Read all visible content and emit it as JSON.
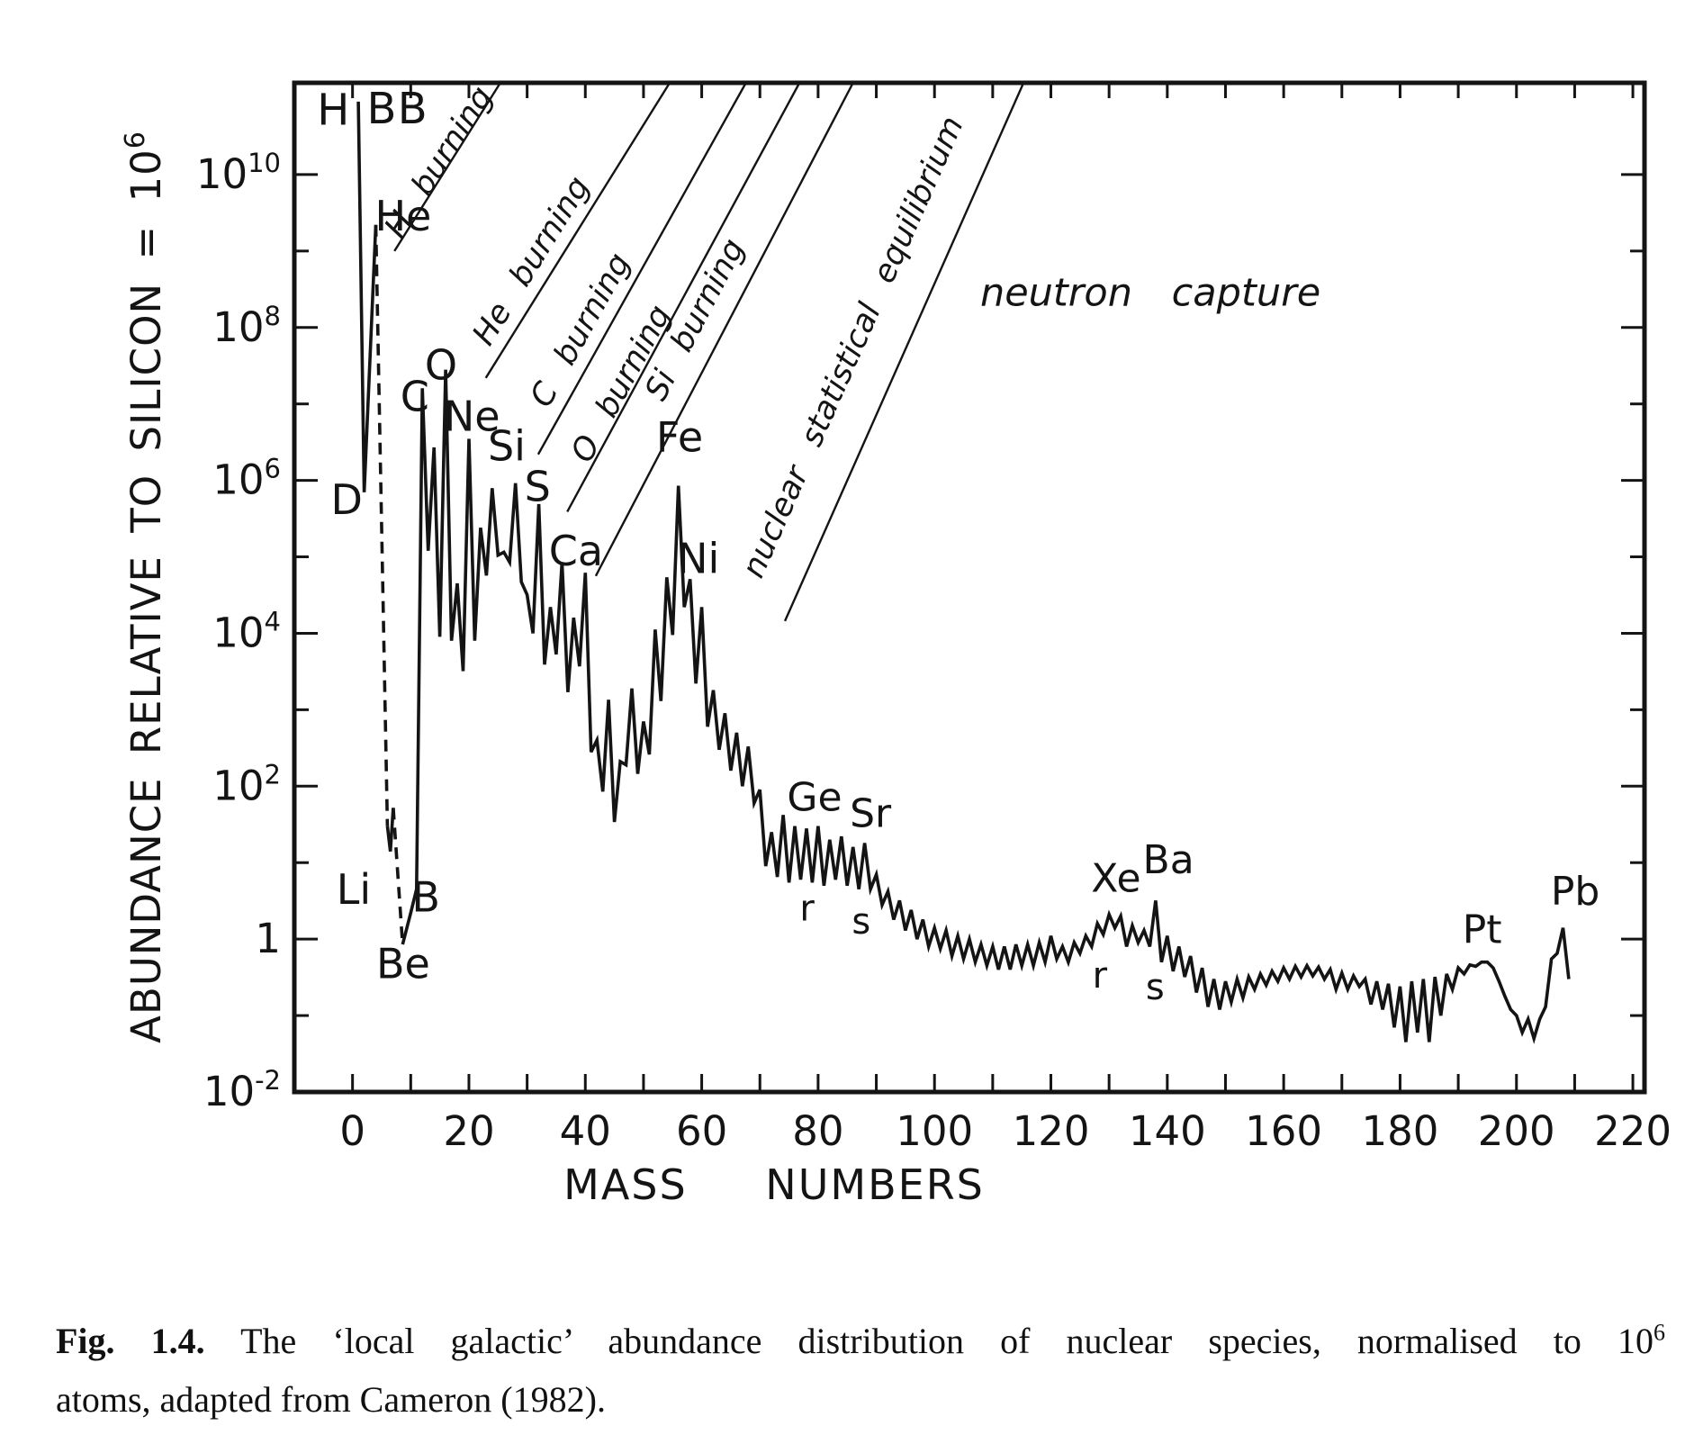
{
  "figure": {
    "caption": {
      "label": "Fig. 1.4.",
      "line1_body": "The ‘local galactic’ abundance distribution of nuclear species, normalised to 10",
      "line1_sup": "6",
      "line2": "atoms, adapted from Cameron (1982)."
    }
  },
  "chart_data": {
    "type": "line",
    "title": "",
    "xlabel": "MASS NUMBERS",
    "ylabel_base": "ABUNDANCE RELATIVE TO SILICON = 10",
    "ylabel_sup": "6",
    "x_range": [
      -10,
      222
    ],
    "y_log_range": [
      -2,
      11.2
    ],
    "grid": false,
    "legend": null,
    "x_tick_step": 10,
    "x_tick_labels": [
      {
        "text": "0",
        "A": 0
      },
      {
        "text": "20",
        "A": 20
      },
      {
        "text": "40",
        "A": 40
      },
      {
        "text": "60",
        "A": 60
      },
      {
        "text": "80",
        "A": 80
      },
      {
        "text": "100",
        "A": 100
      },
      {
        "text": "120",
        "A": 120
      },
      {
        "text": "140",
        "A": 140
      },
      {
        "text": "160",
        "A": 160
      },
      {
        "text": "180",
        "A": 180
      },
      {
        "text": "200",
        "A": 200
      },
      {
        "text": "220",
        "A": 220
      }
    ],
    "y_tick_labels": [
      {
        "base": "10",
        "sup": "10",
        "lv": 10
      },
      {
        "base": "10",
        "sup": "8",
        "lv": 8
      },
      {
        "base": "10",
        "sup": "6",
        "lv": 6
      },
      {
        "base": "10",
        "sup": "4",
        "lv": 4
      },
      {
        "base": "10",
        "sup": "2",
        "lv": 2
      },
      {
        "base": "1",
        "sup": "",
        "lv": 0
      },
      {
        "base": "10",
        "sup": "-2",
        "lv": -2
      }
    ],
    "solid_segments": [
      [
        [
          1,
          90000000000
        ],
        [
          2,
          700000
        ],
        [
          4,
          2200000000
        ]
      ],
      [
        [
          6,
          30
        ],
        [
          6.5,
          14
        ],
        [
          7,
          52
        ]
      ],
      [
        [
          8.6,
          0.85
        ],
        [
          10,
          2.2
        ],
        [
          11,
          4.5
        ],
        [
          12,
          16000000
        ],
        [
          13,
          120000
        ],
        [
          14,
          2700000
        ],
        [
          15,
          9000
        ],
        [
          16,
          28000000
        ],
        [
          17,
          8000
        ],
        [
          18,
          45000
        ],
        [
          19,
          3200
        ],
        [
          20,
          3500000
        ],
        [
          21,
          8000
        ],
        [
          22,
          240000
        ],
        [
          23,
          57000
        ],
        [
          24,
          790000
        ],
        [
          25,
          105000
        ],
        [
          26,
          115000
        ],
        [
          27,
          85000
        ],
        [
          28,
          920000
        ],
        [
          29,
          47000
        ],
        [
          30,
          32000
        ],
        [
          31,
          10000
        ],
        [
          32,
          490000
        ],
        [
          33,
          3900
        ],
        [
          34,
          22000
        ],
        [
          35,
          5300
        ],
        [
          36,
          85000
        ],
        [
          37,
          1700
        ],
        [
          38,
          16000
        ],
        [
          39,
          3700
        ],
        [
          40,
          62000
        ],
        [
          41,
          280
        ],
        [
          42,
          400
        ],
        [
          43,
          85
        ],
        [
          44,
          1350
        ],
        [
          45,
          34
        ],
        [
          46,
          210
        ],
        [
          47,
          190
        ],
        [
          48,
          1900
        ],
        [
          49,
          145
        ],
        [
          50,
          700
        ],
        [
          51,
          260
        ],
        [
          52,
          11200
        ],
        [
          53,
          1300
        ],
        [
          54,
          54000
        ],
        [
          55,
          9500
        ],
        [
          56,
          850000
        ],
        [
          57,
          22000
        ],
        [
          58,
          51000
        ],
        [
          59,
          2200
        ],
        [
          60,
          22000
        ],
        [
          61,
          600
        ],
        [
          62,
          1800
        ],
        [
          63,
          300
        ],
        [
          64,
          900
        ],
        [
          65,
          160
        ],
        [
          66,
          500
        ],
        [
          67,
          100
        ],
        [
          68,
          330
        ],
        [
          69,
          60
        ],
        [
          70,
          90
        ],
        [
          71,
          9
        ],
        [
          72,
          25
        ],
        [
          73,
          6.5
        ],
        [
          74,
          42
        ],
        [
          75,
          5.5
        ],
        [
          76,
          30
        ],
        [
          77,
          6
        ],
        [
          78,
          28
        ],
        [
          79,
          5.5
        ],
        [
          80,
          30
        ],
        [
          81,
          5
        ],
        [
          82,
          20
        ],
        [
          83,
          6
        ],
        [
          84,
          22
        ],
        [
          85,
          5
        ],
        [
          86,
          16
        ],
        [
          87,
          4.5
        ],
        [
          88,
          18
        ],
        [
          89,
          4.5
        ],
        [
          90,
          7
        ],
        [
          91,
          2.8
        ],
        [
          92,
          4.2
        ],
        [
          93,
          1.8
        ],
        [
          94,
          3.2
        ],
        [
          95,
          1.3
        ],
        [
          96,
          2.4
        ],
        [
          97,
          1.0
        ],
        [
          98,
          1.8
        ],
        [
          99,
          0.8
        ],
        [
          100,
          1.4
        ],
        [
          101,
          0.75
        ],
        [
          102,
          1.3
        ],
        [
          103,
          0.6
        ],
        [
          104,
          1.1
        ],
        [
          105,
          0.55
        ],
        [
          106,
          1.0
        ],
        [
          107,
          0.5
        ],
        [
          108,
          0.85
        ],
        [
          109,
          0.45
        ],
        [
          110,
          0.8
        ],
        [
          111,
          0.4
        ],
        [
          112,
          0.8
        ],
        [
          113,
          0.4
        ],
        [
          114,
          0.85
        ],
        [
          115,
          0.45
        ],
        [
          116,
          0.85
        ],
        [
          117,
          0.45
        ],
        [
          118,
          0.9
        ],
        [
          119,
          0.5
        ],
        [
          120,
          1.1
        ],
        [
          121,
          0.55
        ],
        [
          122,
          0.8
        ],
        [
          123,
          0.5
        ],
        [
          124,
          0.9
        ],
        [
          125,
          0.65
        ],
        [
          126,
          1.1
        ],
        [
          127,
          0.8
        ],
        [
          128,
          1.6
        ],
        [
          129,
          1.15
        ],
        [
          130,
          2.1
        ],
        [
          131,
          1.4
        ],
        [
          132,
          2.0
        ],
        [
          133,
          0.8
        ],
        [
          134,
          1.5
        ],
        [
          135,
          0.9
        ],
        [
          136,
          1.3
        ],
        [
          137,
          0.8
        ],
        [
          138,
          3.2
        ],
        [
          139,
          0.5
        ],
        [
          140,
          1.1
        ],
        [
          141,
          0.38
        ],
        [
          142,
          0.8
        ],
        [
          143,
          0.32
        ],
        [
          144,
          0.6
        ],
        [
          145,
          0.2
        ],
        [
          146,
          0.42
        ],
        [
          147,
          0.13
        ],
        [
          148,
          0.3
        ],
        [
          149,
          0.12
        ],
        [
          150,
          0.28
        ],
        [
          151,
          0.15
        ],
        [
          152,
          0.3
        ],
        [
          153,
          0.17
        ],
        [
          154,
          0.32
        ],
        [
          155,
          0.22
        ],
        [
          156,
          0.35
        ],
        [
          157,
          0.25
        ],
        [
          158,
          0.38
        ],
        [
          159,
          0.28
        ],
        [
          160,
          0.42
        ],
        [
          161,
          0.3
        ],
        [
          162,
          0.44
        ],
        [
          163,
          0.32
        ],
        [
          164,
          0.45
        ],
        [
          165,
          0.33
        ],
        [
          166,
          0.43
        ],
        [
          167,
          0.3
        ],
        [
          168,
          0.4
        ],
        [
          169,
          0.22
        ],
        [
          170,
          0.36
        ],
        [
          171,
          0.22
        ],
        [
          172,
          0.33
        ],
        [
          173,
          0.24
        ],
        [
          174,
          0.3
        ],
        [
          175,
          0.14
        ],
        [
          176,
          0.28
        ],
        [
          177,
          0.12
        ],
        [
          178,
          0.26
        ],
        [
          179,
          0.07
        ],
        [
          180,
          0.24
        ],
        [
          181,
          0.045
        ],
        [
          182,
          0.28
        ],
        [
          183,
          0.06
        ],
        [
          184,
          0.3
        ],
        [
          185,
          0.045
        ],
        [
          186,
          0.32
        ],
        [
          187,
          0.1
        ],
        [
          188,
          0.35
        ],
        [
          189,
          0.22
        ],
        [
          190,
          0.42
        ],
        [
          191,
          0.35
        ],
        [
          192,
          0.46
        ],
        [
          193,
          0.44
        ],
        [
          194,
          0.5
        ],
        [
          195,
          0.5
        ],
        [
          196,
          0.42
        ],
        [
          197,
          0.28
        ],
        [
          198,
          0.18
        ],
        [
          199,
          0.12
        ],
        [
          200,
          0.1
        ],
        [
          201,
          0.06
        ],
        [
          202,
          0.09
        ],
        [
          203,
          0.05
        ],
        [
          204,
          0.09
        ],
        [
          205,
          0.13
        ],
        [
          206,
          0.55
        ],
        [
          207,
          0.65
        ],
        [
          208,
          1.4
        ],
        [
          209,
          0.3
        ]
      ]
    ],
    "dashed_segments": [
      [
        [
          4,
          2200000000
        ],
        [
          6,
          30
        ]
      ],
      [
        [
          7,
          52
        ],
        [
          8.6,
          0.85
        ]
      ]
    ],
    "element_labels": [
      {
        "text": "H",
        "A": -3.3,
        "lv": 10.85,
        "size": 48
      },
      {
        "text": "B",
        "A": 5.0,
        "lv": 10.87,
        "size": 48
      },
      {
        "text": "B",
        "A": 10.3,
        "lv": 10.87,
        "size": 48
      },
      {
        "text": "He",
        "A": 8.7,
        "lv": 9.46,
        "size": 46
      },
      {
        "text": "D",
        "A": -1.0,
        "lv": 5.75,
        "size": 46
      },
      {
        "text": "Li",
        "A": 0.2,
        "lv": 0.65,
        "size": 46
      },
      {
        "text": "Be",
        "A": 8.7,
        "lv": -0.32,
        "size": 46
      },
      {
        "text": "B",
        "A": 12.6,
        "lv": 0.55,
        "size": 46
      },
      {
        "text": "C",
        "A": 10.7,
        "lv": 7.1,
        "size": 46
      },
      {
        "text": "O",
        "A": 15.2,
        "lv": 7.51,
        "size": 46
      },
      {
        "text": "Ne",
        "A": 20.5,
        "lv": 6.84,
        "size": 46
      },
      {
        "text": "Si",
        "A": 26.5,
        "lv": 6.45,
        "size": 46
      },
      {
        "text": "S",
        "A": 31.8,
        "lv": 5.92,
        "size": 46
      },
      {
        "text": "Ca",
        "A": 38.4,
        "lv": 5.08,
        "size": 46
      },
      {
        "text": "Fe",
        "A": 56.2,
        "lv": 6.57,
        "size": 46
      },
      {
        "text": "Ni",
        "A": 59.4,
        "lv": 4.98,
        "size": 46
      },
      {
        "text": "Ge",
        "A": 79.4,
        "lv": 1.86,
        "size": 44
      },
      {
        "text": "Sr",
        "A": 89.0,
        "lv": 1.65,
        "size": 44
      },
      {
        "text": "r",
        "A": 78.1,
        "lv": 0.41,
        "size": 40
      },
      {
        "text": "s",
        "A": 87.4,
        "lv": 0.24,
        "size": 40
      },
      {
        "text": "Xe",
        "A": 131.2,
        "lv": 0.8,
        "size": 44
      },
      {
        "text": "Ba",
        "A": 140.2,
        "lv": 1.04,
        "size": 44
      },
      {
        "text": "r",
        "A": 128.4,
        "lv": -0.47,
        "size": 40
      },
      {
        "text": "s",
        "A": 137.9,
        "lv": -0.62,
        "size": 40
      },
      {
        "text": "Pt",
        "A": 194.1,
        "lv": 0.13,
        "size": 44
      },
      {
        "text": "Pb",
        "A": 210.1,
        "lv": 0.63,
        "size": 44
      }
    ],
    "process_lines": [
      {
        "label": "H burning",
        "A1": 7.2,
        "lv1": 9.0,
        "A2": 25.4,
        "lv2": 11.2,
        "label_A": 16.3,
        "label_lv": 10.09,
        "angle": -57.6
      },
      {
        "label": "He burning",
        "A1": 22.9,
        "lv1": 7.34,
        "A2": 54.5,
        "lv2": 11.2,
        "label_A": 32.2,
        "label_lv": 8.8,
        "angle": -58.1
      },
      {
        "label": "C burning",
        "A1": 31.9,
        "lv1": 6.34,
        "A2": 67.6,
        "lv2": 11.2,
        "label_A": 40.7,
        "label_lv": 7.9,
        "angle": -60.8
      },
      {
        "label": "O burning",
        "A1": 36.9,
        "lv1": 5.59,
        "A2": 76.8,
        "lv2": 11.2,
        "label_A": 47.7,
        "label_lv": 7.2,
        "angle": -61.5
      },
      {
        "label": "Si burning",
        "A1": 41.8,
        "lv1": 4.75,
        "A2": 86.0,
        "lv2": 11.2,
        "label_A": 60.4,
        "label_lv": 8.04,
        "angle": -62.4
      },
      {
        "label": "nuclear statistical equilibrium",
        "A1": 74.3,
        "lv1": 4.16,
        "A2": 115.3,
        "lv2": 11.2,
        "label_A": 87.6,
        "label_lv": 7.69,
        "angle": -66.1
      }
    ],
    "annotations": [
      {
        "text": "neutron capture",
        "A": 137.1,
        "lv": 8.46,
        "size": 43
      }
    ]
  }
}
